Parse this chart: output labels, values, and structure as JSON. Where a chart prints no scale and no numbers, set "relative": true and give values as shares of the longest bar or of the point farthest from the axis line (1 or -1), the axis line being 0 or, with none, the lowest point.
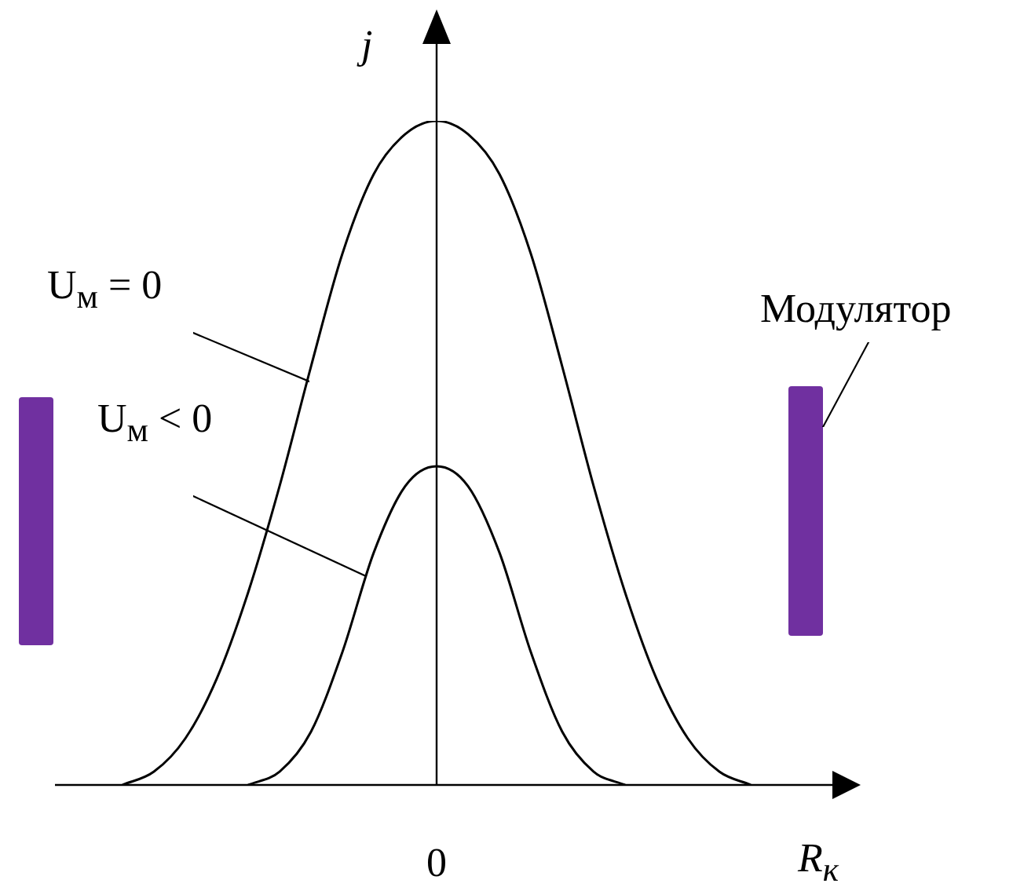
{
  "chart_data": {
    "type": "line",
    "relative": true,
    "categories": [
      null,
      null,
      null,
      null,
      null,
      null,
      null,
      null,
      null,
      null,
      null,
      null,
      null,
      null,
      null,
      null,
      null,
      null,
      null,
      null,
      null,
      null,
      null,
      null,
      null
    ],
    "xlabel": "R$_{к}$",
    "ylabel": "j",
    "annotations": [
      "0",
      "Модулятор"
    ],
    "marker": "none",
    "legend": false,
    "series": [
      {
        "name": "U$_{м}$ = 0",
        "color": "#000000",
        "values": [
          null,
          null,
          0,
          0.02,
          0.07,
          0.16,
          0.29,
          0.45,
          0.63,
          0.8,
          0.92,
          0.98,
          1,
          0.98,
          0.92,
          0.8,
          0.63,
          0.45,
          0.29,
          0.16,
          0.07,
          0.02,
          0,
          null,
          null
        ]
      },
      {
        "name": "U$_{м}$ < 0",
        "color": "#000000",
        "values": [
          null,
          null,
          null,
          null,
          null,
          null,
          0,
          0.02,
          0.08,
          0.2,
          0.35,
          0.45,
          0.48,
          0.45,
          0.35,
          0.2,
          0.08,
          0.02,
          0,
          null,
          null,
          null,
          null,
          null,
          null
        ]
      }
    ]
  }
}
